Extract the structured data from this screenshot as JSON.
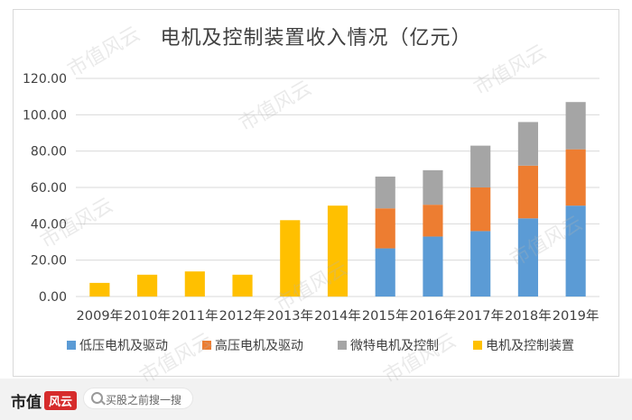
{
  "chart_data": {
    "type": "bar",
    "stacked": true,
    "title": "电机及控制装置收入情况（亿元）",
    "categories": [
      "2009年",
      "2010年",
      "2011年",
      "2012年",
      "2013年",
      "2014年",
      "2015年",
      "2016年",
      "2017年",
      "2018年",
      "2019年"
    ],
    "ylim": [
      0,
      120
    ],
    "yticks": [
      "0.00",
      "20.00",
      "40.00",
      "60.00",
      "80.00",
      "100.00",
      "120.00"
    ],
    "grid": true,
    "legend_position": "bottom",
    "series": [
      {
        "name": "低压电机及驱动",
        "color": "#5b9bd5",
        "values": [
          0,
          0,
          0,
          0,
          0,
          0,
          26.5,
          33,
          36,
          43,
          50
        ]
      },
      {
        "name": "高压电机及驱动",
        "color": "#ed7d31",
        "values": [
          0,
          0,
          0,
          0,
          0,
          0,
          22,
          17.5,
          24,
          29,
          31
        ]
      },
      {
        "name": "微特电机及控制",
        "color": "#a5a5a5",
        "values": [
          0,
          0,
          0,
          0,
          0,
          0,
          17.5,
          19,
          23,
          24,
          26
        ]
      },
      {
        "name": "电机及控制装置",
        "color": "#ffc000",
        "values": [
          7.5,
          12,
          13.8,
          12,
          42,
          50,
          0,
          0,
          0,
          0,
          0
        ]
      }
    ]
  },
  "footer": {
    "brand": "市值",
    "brand_mark": "风云",
    "search_placeholder": "买股之前搜一搜",
    "search_icon": "search-icon"
  },
  "watermark_text": "市值风云"
}
